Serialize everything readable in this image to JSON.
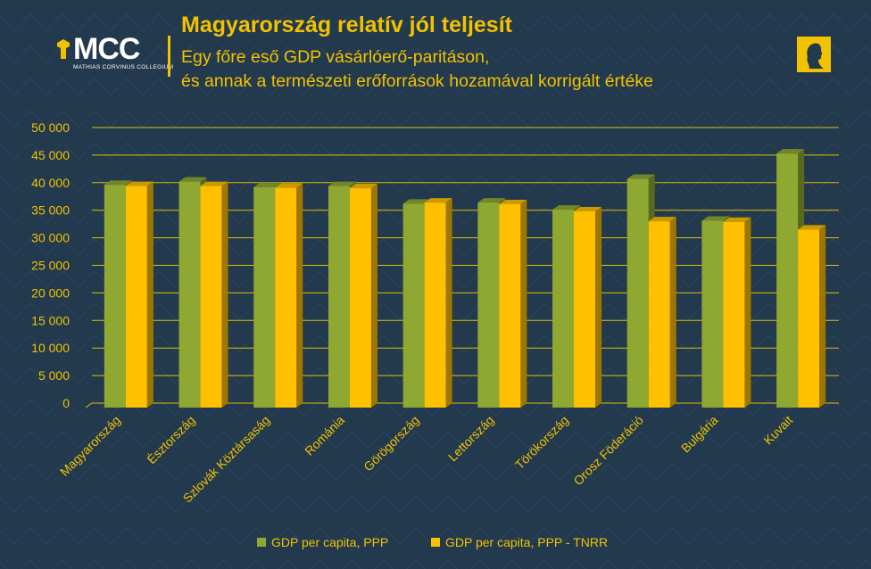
{
  "header": {
    "title": "Magyarország relatív jól teljesít",
    "subtitle_line1": "Egy főre eső GDP vásárlóerő-paritáson,",
    "subtitle_line2": "és annak a természeti erőforrások hozamával korrigált értéke"
  },
  "logo": {
    "text": "MCC",
    "subtext": "MATHIAS CORVINUS COLLEGIUM"
  },
  "colors": {
    "background": "#22394e",
    "accent": "#f2c200",
    "series_ppp": "#8fa832",
    "series_tnrr": "#ffc000"
  },
  "chart_data": {
    "type": "bar",
    "style": "3d-clustered-column",
    "categories": [
      "Magyarország",
      "Észtország",
      "Szlovák Köztársaság",
      "Románia",
      "Görögország",
      "Lettország",
      "Törökország",
      "Orosz Föderáció",
      "Bulgária",
      "Kuvait"
    ],
    "series": [
      {
        "name": "GDP per capita, PPP",
        "color": "#8fa832",
        "values": [
          40400,
          41000,
          40000,
          40200,
          37000,
          37200,
          35900,
          41500,
          33900,
          46100
        ]
      },
      {
        "name": "GDP per capita, PPP - TNRR",
        "color": "#ffc000",
        "values": [
          40200,
          40200,
          39900,
          39800,
          37200,
          36900,
          35600,
          33800,
          33700,
          32300
        ]
      }
    ],
    "ylim": [
      0,
      50000
    ],
    "yticks": [
      "0",
      "5 000",
      "10 000",
      "15 000",
      "20 000",
      "25 000",
      "30 000",
      "35 000",
      "40 000",
      "45 000",
      "50 000"
    ],
    "grid": true,
    "legend_position": "bottom"
  }
}
